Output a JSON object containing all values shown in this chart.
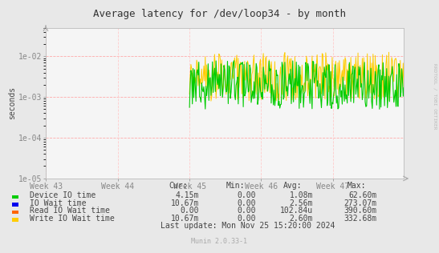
{
  "title": "Average latency for /dev/loop34 - by month",
  "ylabel": "seconds",
  "background_color": "#e8e8e8",
  "plot_bg_color": "#f5f5f5",
  "grid_color_h": "#ffaaaa",
  "grid_color_v": "#ffcccc",
  "watermark": "RRDTOOL / TOBI OETIKER",
  "footer": "Munin 2.0.33-1",
  "last_update": "Last update: Mon Nov 25 15:20:00 2024",
  "x_tick_labels": [
    "Week 43",
    "Week 44",
    "Week 45",
    "Week 46",
    "Week 47"
  ],
  "legend": [
    {
      "label": "Device IO time",
      "color": "#00cc00",
      "cur": "4.15m",
      "min": "0.00",
      "avg": "1.08m",
      "max": "62.60m"
    },
    {
      "label": "IO Wait time",
      "color": "#0000ee",
      "cur": "10.67m",
      "min": "0.00",
      "avg": "2.56m",
      "max": "273.07m"
    },
    {
      "label": "Read IO Wait time",
      "color": "#ff6600",
      "cur": "0.00",
      "min": "0.00",
      "avg": "102.84u",
      "max": "390.60m"
    },
    {
      "label": "Write IO Wait time",
      "color": "#ffcc00",
      "cur": "10.67m",
      "min": "0.00",
      "avg": "2.60m",
      "max": "332.68m"
    }
  ],
  "n_points": 500,
  "seed": 7,
  "week_starts": [
    0,
    100,
    200,
    300,
    400
  ]
}
